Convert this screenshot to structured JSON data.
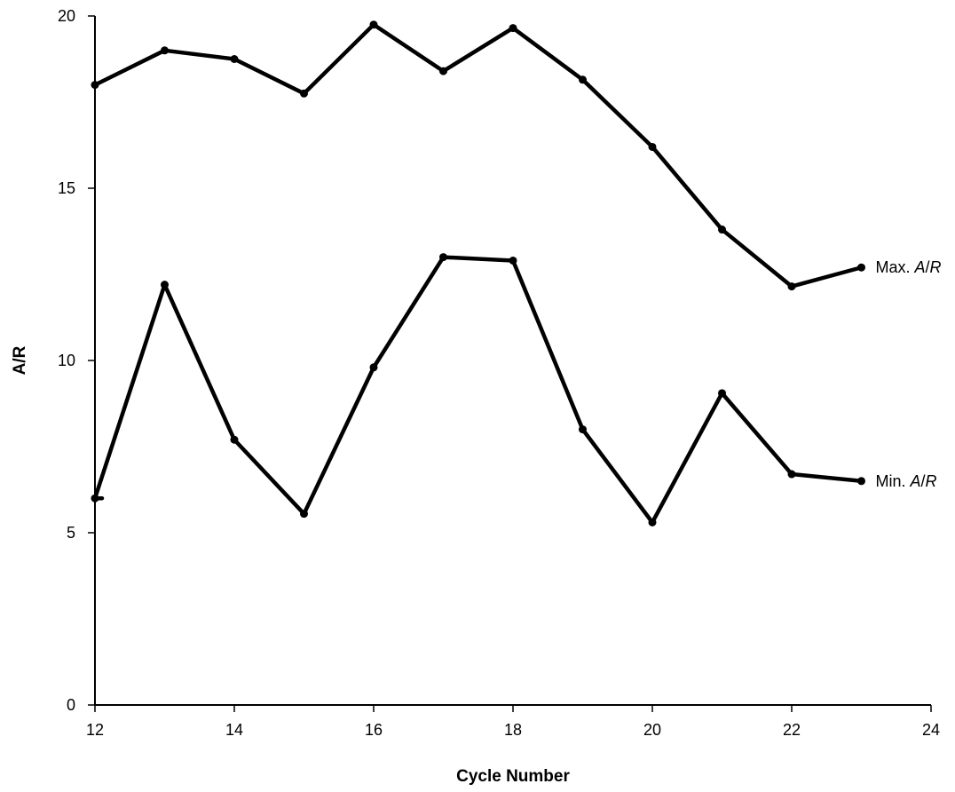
{
  "chart_data": {
    "type": "line",
    "title": "",
    "xlabel": "Cycle Number",
    "ylabel": "A/R",
    "xlim": [
      12,
      24
    ],
    "ylim": [
      0,
      20
    ],
    "xticks": [
      12,
      14,
      16,
      18,
      20,
      22,
      24
    ],
    "yticks": [
      0,
      5,
      10,
      15,
      20
    ],
    "grid": false,
    "legend": "none",
    "series": [
      {
        "name": "Max. A/R",
        "label_prefix": "Max. ",
        "label_italic": "A",
        "label_sep": "/",
        "label_italic2": "R",
        "x": [
          12,
          13,
          14,
          15,
          16,
          17,
          18,
          19,
          20,
          21,
          22,
          23
        ],
        "values": [
          18.0,
          19.0,
          18.75,
          17.75,
          19.75,
          18.4,
          19.65,
          18.15,
          16.2,
          13.8,
          12.15,
          12.7
        ]
      },
      {
        "name": "Min. A/R",
        "label_prefix": "Min. ",
        "label_italic": "A",
        "label_sep": "/",
        "label_italic2": "R",
        "x": [
          12,
          13,
          14,
          15,
          16,
          17,
          18,
          19,
          20,
          21,
          22,
          23
        ],
        "values": [
          6.0,
          12.2,
          7.7,
          5.55,
          9.8,
          13.0,
          12.9,
          8.0,
          5.3,
          9.05,
          6.7,
          6.5
        ]
      }
    ]
  }
}
